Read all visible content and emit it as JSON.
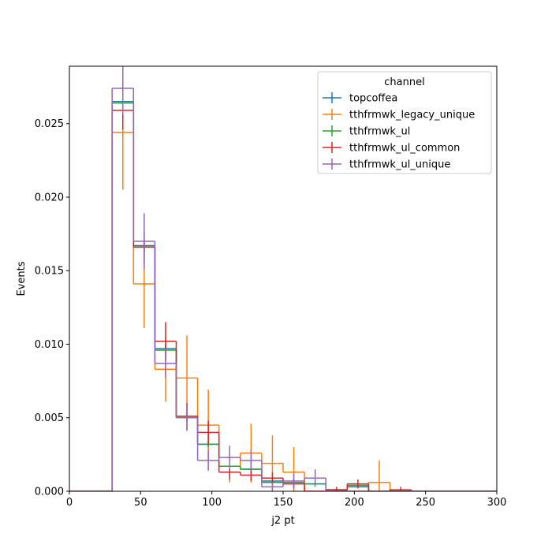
{
  "chart_data": {
    "type": "histogram",
    "xlabel": "j2 pt",
    "ylabel": "Events",
    "xlim": [
      0,
      300
    ],
    "ylim": [
      0,
      0.0289
    ],
    "xticks": [
      0,
      50,
      100,
      150,
      200,
      250,
      300
    ],
    "yticks": [
      0.0,
      0.005,
      0.01,
      0.015,
      0.02,
      0.025
    ],
    "ytick_labels": [
      "0.000",
      "0.005",
      "0.010",
      "0.015",
      "0.020",
      "0.025"
    ],
    "legend": {
      "title": "channel",
      "placement": "upper-right"
    },
    "bin_edges": [
      0,
      15,
      30,
      45,
      60,
      75,
      90,
      105,
      120,
      135,
      150,
      165,
      180,
      195,
      210,
      225,
      240,
      255,
      270,
      285,
      300
    ],
    "series": [
      {
        "name": "topcoffea",
        "color": "#1f77b4",
        "values": [
          0,
          0,
          0.0265,
          0.0167,
          0.0097,
          0.0051,
          0.0032,
          0.0017,
          0.0015,
          0.0007,
          0.0006,
          0.0005,
          0.0001,
          0.0003,
          0,
          0,
          0,
          0,
          0,
          0
        ],
        "errors": [
          0,
          0,
          0.0006,
          0.0004,
          0.0003,
          0.0002,
          0.0002,
          0.0001,
          0.0001,
          0.0001,
          0.0001,
          0.0001,
          5e-05,
          5e-05,
          0,
          0,
          0,
          0,
          0,
          0
        ]
      },
      {
        "name": "tthfrmwk_legacy_unique",
        "color": "#ff7f0e",
        "values": [
          0,
          0,
          0.0244,
          0.0141,
          0.0083,
          0.0077,
          0.0045,
          0.0017,
          0.0026,
          0.0019,
          0.0013,
          0,
          0,
          0,
          0.0006,
          0,
          0,
          0,
          0,
          0
        ],
        "errors": [
          0,
          0,
          0.0039,
          0.003,
          0.0022,
          0.0029,
          0.0024,
          0.0011,
          0.002,
          0.0019,
          0.0017,
          0,
          0,
          0,
          0.0015,
          0,
          0,
          0,
          0,
          0
        ]
      },
      {
        "name": "tthfrmwk_ul",
        "color": "#2ca02c",
        "values": [
          0,
          0,
          0.0264,
          0.0166,
          0.0096,
          0.005,
          0.0032,
          0.0017,
          0.0015,
          0.0006,
          0.0006,
          0.0005,
          0.0001,
          0.0004,
          0,
          0,
          0,
          0,
          0,
          0
        ],
        "errors": [
          0,
          0,
          0.0006,
          0.0004,
          0.0003,
          0.0002,
          0.0002,
          0.0001,
          0.0001,
          0.0001,
          0.0001,
          0.0001,
          5e-05,
          0.0001,
          0,
          0,
          0,
          0,
          0,
          0
        ]
      },
      {
        "name": "tthfrmwk_ul_common",
        "color": "#d62728",
        "values": [
          0,
          0,
          0.0259,
          0.0166,
          0.0102,
          0.0051,
          0.004,
          0.0013,
          0.0011,
          0.0009,
          0.0005,
          0,
          0.0001,
          0.0005,
          0,
          0.0001,
          0,
          0,
          0,
          0
        ],
        "errors": [
          0,
          0,
          0.0013,
          0.001,
          0.0013,
          0.0009,
          0.0008,
          0.0005,
          0.0004,
          0.0004,
          0.0003,
          0,
          0.0002,
          0.0003,
          0,
          0.0002,
          0,
          0,
          0,
          0
        ],
        "error_only_bins": [
          15
        ]
      },
      {
        "name": "tthfrmwk_ul_unique",
        "color": "#9467bd",
        "values": [
          0,
          0,
          0.0274,
          0.017,
          0.0087,
          0.005,
          0.0021,
          0.0023,
          0.0021,
          0.0003,
          0.0007,
          0.0009,
          0,
          0,
          0,
          0,
          0,
          0,
          0,
          0
        ],
        "errors": [
          0,
          0,
          0.0018,
          0.0019,
          0.001,
          0.0009,
          0.0007,
          0.0008,
          0.0007,
          0.0003,
          0.0005,
          0.0006,
          0,
          0,
          0,
          0,
          0,
          0,
          0,
          0
        ]
      }
    ]
  }
}
